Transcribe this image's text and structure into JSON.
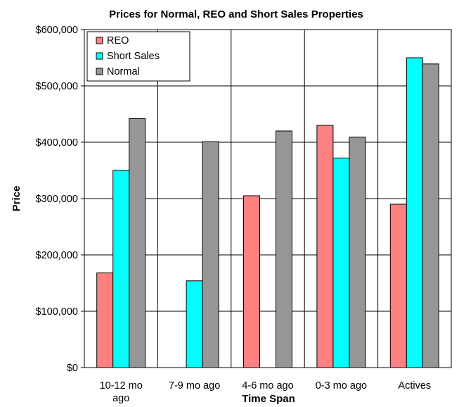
{
  "chart_data": {
    "type": "bar",
    "title": "Prices for Normal, REO and Short  Sales Properties",
    "xlabel": "Time Span",
    "ylabel": "Price",
    "categories": [
      [
        "10-12 mo",
        "ago"
      ],
      [
        "7-9 mo ago"
      ],
      [
        "4-6 mo ago"
      ],
      [
        "0-3 mo ago"
      ],
      [
        "Actives"
      ]
    ],
    "series": [
      {
        "name": "REO",
        "color": "#FF8080",
        "values": [
          168000,
          0,
          305000,
          430000,
          290000
        ]
      },
      {
        "name": "Short Sales",
        "color": "#00FFFF",
        "values": [
          350000,
          154000,
          0,
          372000,
          550000
        ]
      },
      {
        "name": "Normal",
        "color": "#969696",
        "values": [
          442000,
          401000,
          420000,
          409000,
          539000
        ]
      }
    ],
    "ylim": [
      0,
      600000
    ],
    "yticks": [
      0,
      100000,
      200000,
      300000,
      400000,
      500000,
      600000
    ],
    "ytick_labels": [
      "$0",
      "$100,000",
      "$200,000",
      "$300,000",
      "$400,000",
      "$500,000",
      "$600,000"
    ],
    "grid": true,
    "legend_position": "top-left"
  }
}
